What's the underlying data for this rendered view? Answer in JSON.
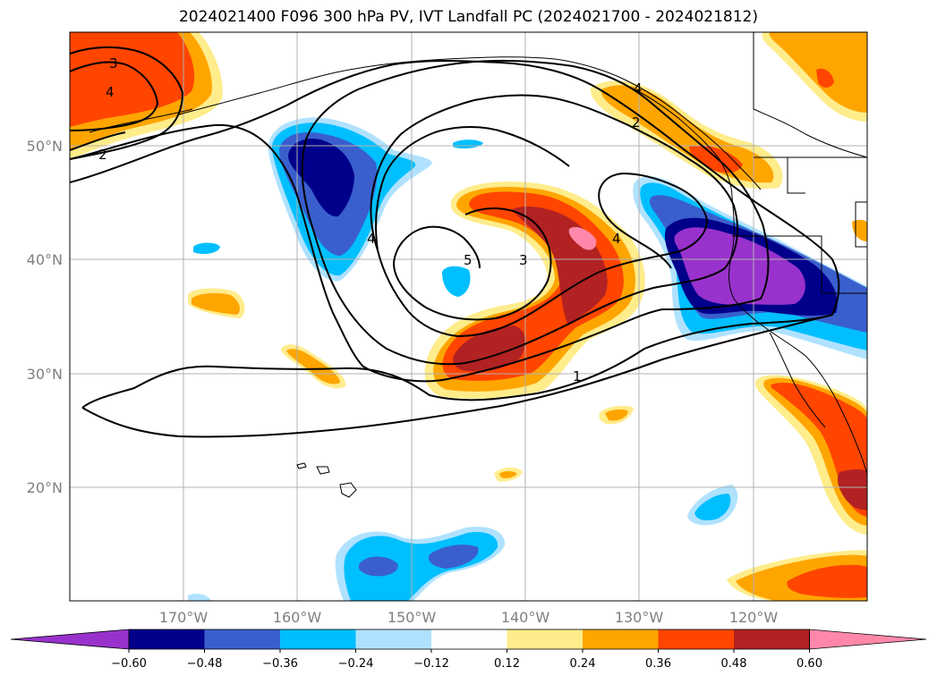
{
  "title": "2024021400 F096 300 hPa PV, IVT Landfall PC (2024021700 - 2024021812)",
  "lat_labels": [
    "50°N",
    "40°N",
    "30°N",
    "20°N"
  ],
  "lon_labels": [
    "170°W",
    "160°W",
    "150°W",
    "140°W",
    "130°W",
    "120°W"
  ],
  "colorbar": {
    "colors": [
      "#9932CC",
      "#00008B",
      "#3A5FCD",
      "#00BFFF",
      "#B0E2FF",
      "#FFFFFF",
      "#FFEC8B",
      "#FFA500",
      "#FF4500",
      "#B22222",
      "#FF88AA"
    ],
    "tick_labels": [
      "−0.60",
      "−0.48",
      "−0.36",
      "−0.24",
      "−0.12",
      "0.12",
      "0.24",
      "0.36",
      "0.48",
      "0.60"
    ]
  },
  "contour_labels": [
    "3",
    "4",
    "2",
    "5",
    "3",
    "4",
    "4",
    "1",
    "4",
    "2"
  ]
}
